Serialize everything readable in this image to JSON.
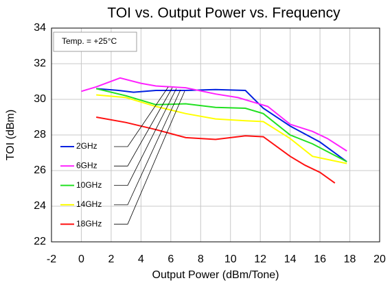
{
  "chart_data": {
    "type": "line",
    "title": "TOI vs. Output Power vs. Frequency",
    "x_label": "Output Power (dBm/Tone)",
    "y_label": "TOI (dBm)",
    "annotation": "Temp. = +25°C",
    "xlim": [
      -2,
      20
    ],
    "xticks": [
      -2,
      0,
      2,
      4,
      6,
      8,
      10,
      12,
      14,
      16,
      18,
      20
    ],
    "ylim": [
      22,
      34
    ],
    "yticks": [
      22,
      24,
      26,
      28,
      30,
      32,
      34
    ],
    "grid": true,
    "legend": "left",
    "series": [
      {
        "name": "2GHz",
        "color": "#0020e0",
        "x": [
          1,
          2.5,
          3.5,
          5,
          7,
          9,
          11,
          12.2,
          14,
          16,
          17.8
        ],
        "values": [
          30.6,
          30.5,
          30.4,
          30.5,
          30.5,
          30.55,
          30.5,
          29.5,
          28.5,
          27.6,
          26.5
        ]
      },
      {
        "name": "6GHz",
        "color": "#ff20ff",
        "x": [
          0,
          1,
          2.6,
          4,
          5,
          7,
          9,
          10.5,
          12.5,
          14,
          15.5,
          16.5,
          17.8
        ],
        "values": [
          30.45,
          30.7,
          31.2,
          30.9,
          30.75,
          30.65,
          30.3,
          30.1,
          29.6,
          28.6,
          28.2,
          27.8,
          27.1
        ]
      },
      {
        "name": "10GHz",
        "color": "#20e020",
        "x": [
          1,
          3,
          5,
          7,
          9,
          11,
          12.2,
          14,
          15.5,
          17.8
        ],
        "values": [
          30.6,
          30.2,
          29.7,
          29.75,
          29.55,
          29.5,
          29.2,
          28.0,
          27.5,
          26.5
        ]
      },
      {
        "name": "14GHz",
        "color": "#ffff00",
        "x": [
          1,
          3,
          5,
          7,
          9,
          11,
          12.2,
          14,
          15.5,
          17.8
        ],
        "values": [
          30.25,
          30.1,
          29.6,
          29.2,
          28.9,
          28.8,
          28.75,
          27.8,
          26.8,
          26.4
        ]
      },
      {
        "name": "18GHz",
        "color": "#ff1010",
        "x": [
          1,
          3,
          5,
          7,
          9,
          11,
          12.2,
          14,
          15,
          16,
          17
        ],
        "values": [
          29.0,
          28.7,
          28.3,
          27.85,
          27.75,
          27.95,
          27.9,
          26.8,
          26.3,
          25.9,
          25.3
        ]
      }
    ]
  }
}
